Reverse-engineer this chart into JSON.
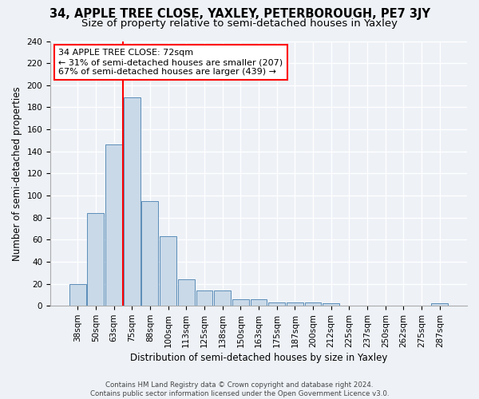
{
  "title": "34, APPLE TREE CLOSE, YAXLEY, PETERBOROUGH, PE7 3JY",
  "subtitle": "Size of property relative to semi-detached houses in Yaxley",
  "xlabel": "Distribution of semi-detached houses by size in Yaxley",
  "ylabel": "Number of semi-detached properties",
  "categories": [
    "38sqm",
    "50sqm",
    "63sqm",
    "75sqm",
    "88sqm",
    "100sqm",
    "113sqm",
    "125sqm",
    "138sqm",
    "150sqm",
    "163sqm",
    "175sqm",
    "187sqm",
    "200sqm",
    "212sqm",
    "225sqm",
    "237sqm",
    "250sqm",
    "262sqm",
    "275sqm",
    "287sqm"
  ],
  "values": [
    20,
    84,
    146,
    189,
    95,
    63,
    24,
    14,
    14,
    6,
    6,
    3,
    3,
    3,
    2,
    0,
    0,
    0,
    0,
    0,
    2
  ],
  "bar_color": "#c9d9e8",
  "bar_edge_color": "#5b8db8",
  "property_line_x": 2.5,
  "annotation_title": "34 APPLE TREE CLOSE: 72sqm",
  "annotation_line1": "← 31% of semi-detached houses are smaller (207)",
  "annotation_line2": "67% of semi-detached houses are larger (439) →",
  "annotation_box_color": "white",
  "annotation_box_edge": "red",
  "vline_color": "red",
  "footer1": "Contains HM Land Registry data © Crown copyright and database right 2024.",
  "footer2": "Contains public sector information licensed under the Open Government Licence v3.0.",
  "ylim": [
    0,
    240
  ],
  "yticks": [
    0,
    20,
    40,
    60,
    80,
    100,
    120,
    140,
    160,
    180,
    200,
    220,
    240
  ],
  "bg_color": "#eef2f7",
  "grid_color": "#ffffff",
  "title_fontsize": 10.5,
  "subtitle_fontsize": 9.5,
  "axis_label_fontsize": 8.5,
  "tick_fontsize": 7.5,
  "annotation_fontsize": 8
}
